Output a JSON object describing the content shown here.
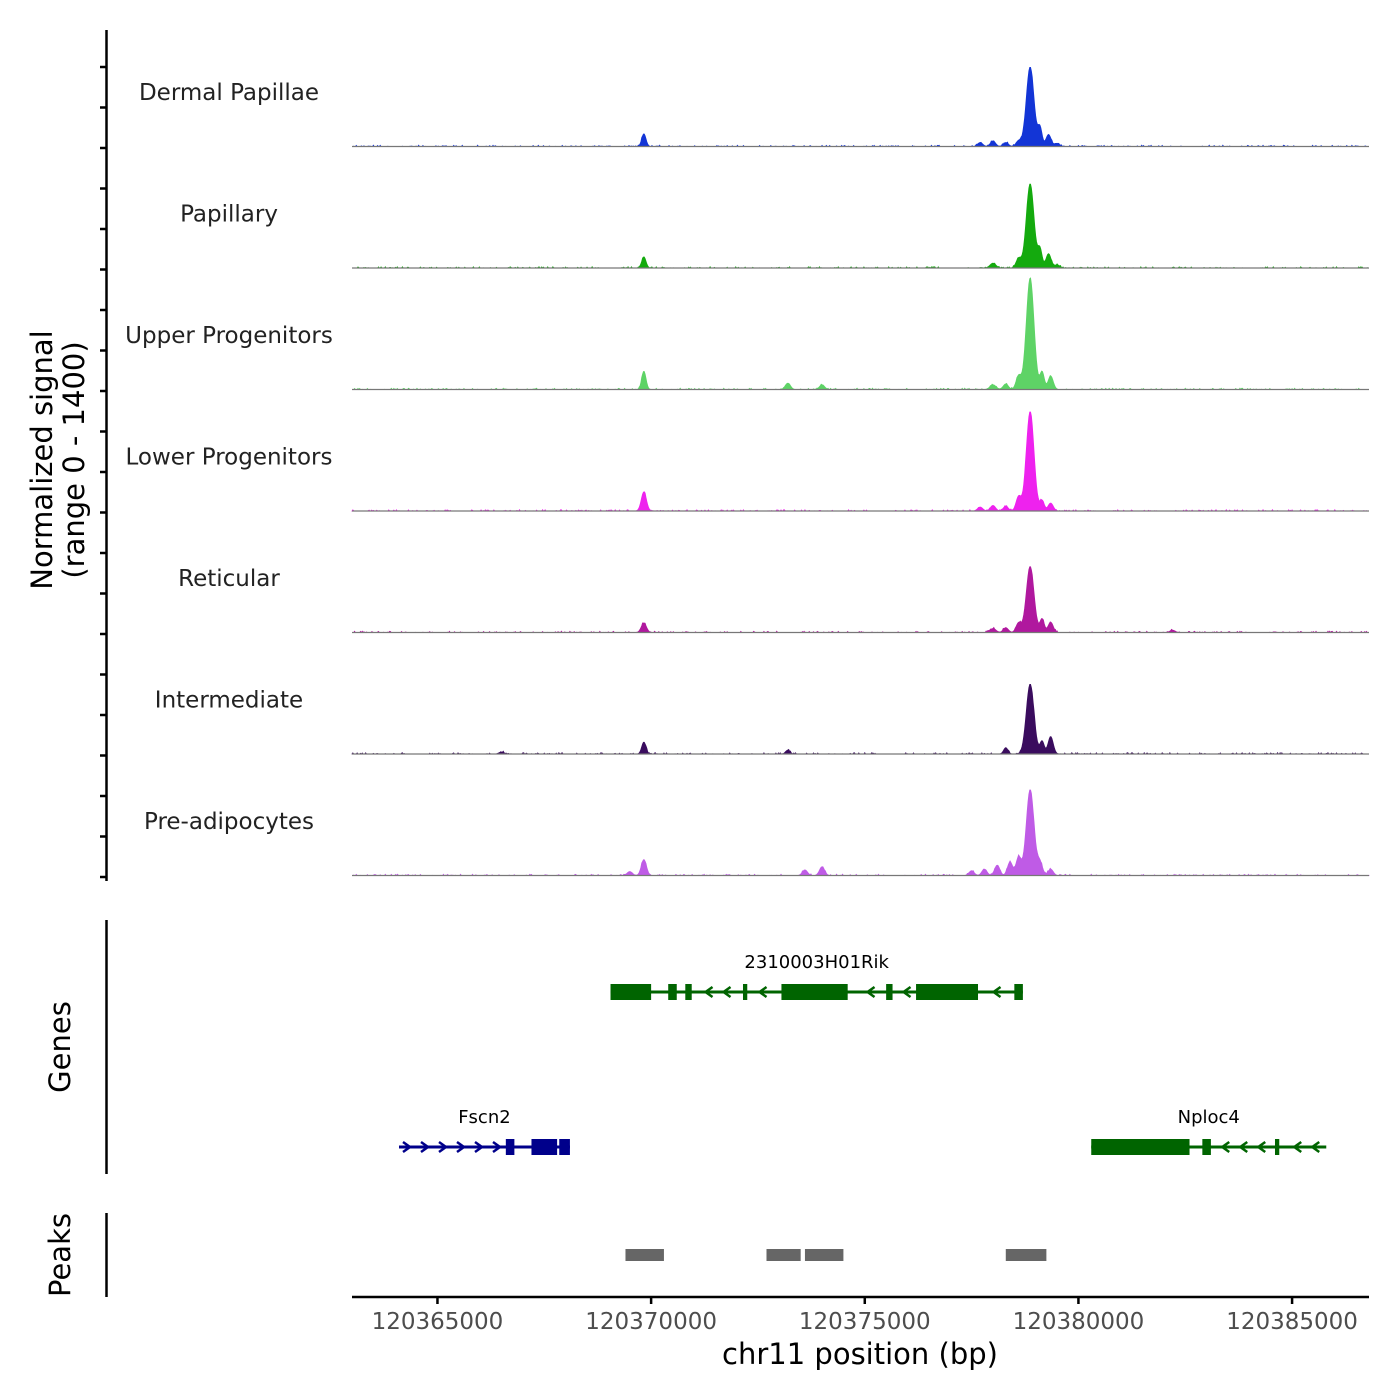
{
  "chart_data": {
    "type": "area",
    "title": "",
    "chromosome": "chr11",
    "xlabel": "chr11 position (bp)",
    "ylabel_line1": "Normalized signal",
    "ylabel_line2": "(range 0 - 1400)",
    "y_range": [
      0,
      1400
    ],
    "xlim": [
      120363000,
      120386800
    ],
    "x_ticks": [
      120365000,
      120370000,
      120375000,
      120380000,
      120385000
    ],
    "x_tick_labels": [
      "120365000",
      "120370000",
      "120375000",
      "120380000",
      "120385000"
    ],
    "series": [
      {
        "name": "Dermal Papillae",
        "color": "#1335d6",
        "peaks": [
          [
            120369830,
            160,
            50
          ],
          [
            120377700,
            50,
            60
          ],
          [
            120378000,
            70,
            60
          ],
          [
            120378300,
            50,
            60
          ],
          [
            120378600,
            70,
            60
          ],
          [
            120378870,
            1000,
            90
          ],
          [
            120379100,
            230,
            50
          ],
          [
            120379300,
            150,
            60
          ],
          [
            120379500,
            40,
            60
          ]
        ]
      },
      {
        "name": "Papillary",
        "color": "#14aa0e",
        "peaks": [
          [
            120369830,
            140,
            50
          ],
          [
            120378000,
            60,
            70
          ],
          [
            120378600,
            120,
            60
          ],
          [
            120378870,
            1060,
            90
          ],
          [
            120379100,
            230,
            50
          ],
          [
            120379300,
            180,
            60
          ],
          [
            120379500,
            40,
            60
          ]
        ]
      },
      {
        "name": "Upper Progenitors",
        "color": "#5ed366",
        "peaks": [
          [
            120369830,
            230,
            50
          ],
          [
            120373200,
            80,
            60
          ],
          [
            120374000,
            60,
            60
          ],
          [
            120378000,
            60,
            70
          ],
          [
            120378300,
            70,
            60
          ],
          [
            120378600,
            170,
            60
          ],
          [
            120378870,
            1400,
            90
          ],
          [
            120379150,
            220,
            50
          ],
          [
            120379350,
            170,
            60
          ]
        ]
      },
      {
        "name": "Lower Progenitors",
        "color": "#ee22ee",
        "peaks": [
          [
            120369830,
            240,
            60
          ],
          [
            120377700,
            50,
            60
          ],
          [
            120378000,
            70,
            60
          ],
          [
            120378300,
            60,
            60
          ],
          [
            120378600,
            180,
            60
          ],
          [
            120378870,
            1250,
            90
          ],
          [
            120379150,
            130,
            50
          ],
          [
            120379350,
            100,
            60
          ]
        ]
      },
      {
        "name": "Reticular",
        "color": "#b0189e",
        "peaks": [
          [
            120369830,
            120,
            60
          ],
          [
            120378000,
            50,
            70
          ],
          [
            120378300,
            60,
            60
          ],
          [
            120378600,
            120,
            60
          ],
          [
            120378870,
            830,
            90
          ],
          [
            120379150,
            170,
            50
          ],
          [
            120379350,
            130,
            60
          ],
          [
            120382200,
            30,
            60
          ]
        ]
      },
      {
        "name": "Intermediate",
        "color": "#3a0c5e",
        "peaks": [
          [
            120369830,
            150,
            50
          ],
          [
            120373200,
            50,
            50
          ],
          [
            120378300,
            80,
            50
          ],
          [
            120378870,
            880,
            90
          ],
          [
            120379150,
            160,
            50
          ],
          [
            120379350,
            220,
            60
          ],
          [
            120366500,
            25,
            60
          ]
        ]
      },
      {
        "name": "Pre-adipocytes",
        "color": "#bf5be6",
        "peaks": [
          [
            120369500,
            50,
            60
          ],
          [
            120369830,
            200,
            60
          ],
          [
            120373600,
            70,
            60
          ],
          [
            120374000,
            110,
            60
          ],
          [
            120377500,
            60,
            60
          ],
          [
            120377800,
            80,
            60
          ],
          [
            120378100,
            130,
            60
          ],
          [
            120378400,
            170,
            60
          ],
          [
            120378600,
            230,
            60
          ],
          [
            120378870,
            1080,
            90
          ],
          [
            120379100,
            160,
            60
          ],
          [
            120379350,
            80,
            60
          ]
        ]
      }
    ],
    "genes": [
      {
        "name": "2310003H01Rik",
        "strand": "-",
        "color": "#006400",
        "start": 120369050,
        "end": 120378700,
        "exons": [
          [
            120369050,
            120370000
          ],
          [
            120370400,
            120370600
          ],
          [
            120370800,
            120370950
          ],
          [
            120372150,
            120372250
          ],
          [
            120373050,
            120374600
          ],
          [
            120375500,
            120375650
          ],
          [
            120376200,
            120377650
          ],
          [
            120378500,
            120378700
          ]
        ]
      },
      {
        "name": "Fscn2",
        "strand": "+",
        "color": "#00008b",
        "start": 120364100,
        "end": 120368100,
        "exons": [
          [
            120366600,
            120366800
          ],
          [
            120367200,
            120367800
          ],
          [
            120367850,
            120368100
          ]
        ]
      },
      {
        "name": "Nploc4",
        "strand": "-",
        "color": "#006400",
        "start": 120380300,
        "end": 120385800,
        "exons": [
          [
            120380300,
            120382600
          ],
          [
            120382900,
            120383100
          ],
          [
            120384600,
            120384700
          ]
        ]
      }
    ],
    "peaks": [
      [
        120369400,
        120370300
      ],
      [
        120372700,
        120373500
      ],
      [
        120373600,
        120374500
      ],
      [
        120378300,
        120379250
      ]
    ]
  },
  "panels": {
    "genes_label": "Genes",
    "peaks_label": "Peaks"
  }
}
